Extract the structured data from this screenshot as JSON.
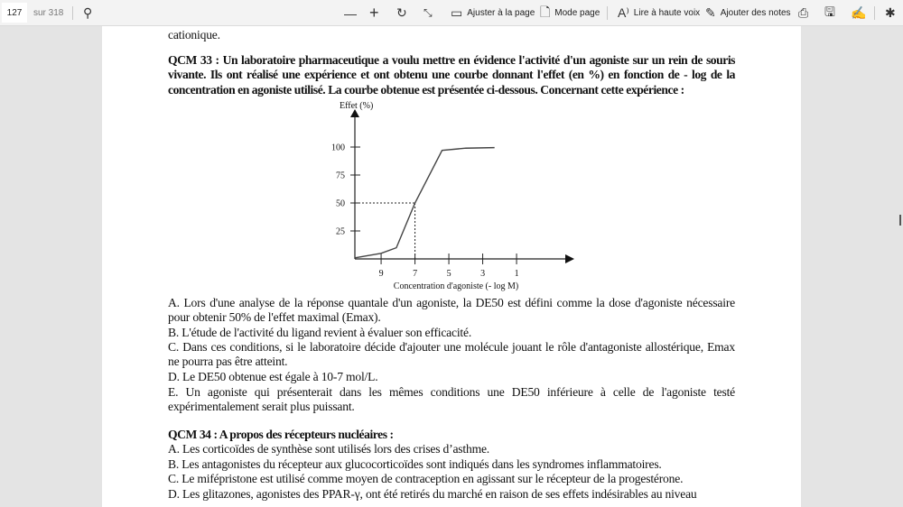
{
  "toolbar": {
    "page_current": "127",
    "page_total": "sur 318",
    "fit_page": "Ajuster à la page",
    "page_mode": "Mode page",
    "read_aloud": "Lire à haute voix",
    "add_notes": "Ajouter des notes"
  },
  "document": {
    "prev_tail": "cationique.",
    "qcm33": {
      "title": "QCM 33 : Un laboratoire pharmaceutique a voulu mettre en évidence l'activité d'un agoniste sur un rein de souris vivante. Ils ont réalisé une expérience et ont obtenu une courbe donnant l'effet (en %) en fonction de - log de la concentration en agoniste utilisé. La courbe obtenue est présentée ci-dessous. Concernant cette expérience :",
      "options": [
        "A. Lors d'une analyse de la réponse quantale d'un agoniste, la DE50 est défini comme la dose d'agoniste nécessaire pour obtenir 50% de l'effet maximal (Emax).",
        "B. L'étude de l'activité du ligand revient à évaluer son efficacité.",
        "C. Dans ces conditions, si le laboratoire décide d'ajouter une molécule jouant le rôle d'antagoniste allostérique, Emax ne pourra pas être atteint.",
        "D. Le DE50 obtenue est égale à 10-7 mol/L.",
        "E. Un agoniste qui présenterait dans les mêmes conditions une DE50 inférieure à celle de l'agoniste testé expérimentalement serait plus puissant."
      ]
    },
    "qcm34": {
      "title": "QCM 34 : A propos des récepteurs nucléaires :",
      "options": [
        "A. Les corticoïdes de synthèse sont utilisés lors des crises d’asthme.",
        "B. Les antagonistes du récepteur aux glucocorticoïdes sont indiqués dans les syndromes inflammatoires.",
        "C. Le mifépristone est utilisé comme moyen de contraception en agissant sur le récepteur de la progestérone.",
        "D. Les glitazones, agonistes des PPAR-γ, ont été retirés du marché en raison de ses effets indésirables au niveau"
      ]
    }
  },
  "chart_data": {
    "type": "line",
    "ylabel": "Effet (%)",
    "xlabel": "Concentration d'agoniste (- log M)",
    "x_ticks": [
      "9",
      "7",
      "5",
      "3",
      "1"
    ],
    "y_ticks": [
      "25",
      "50",
      "75",
      "100"
    ],
    "x_reversed": true,
    "series": [
      {
        "x": [
          10.55,
          9,
          8.1,
          7,
          5.4,
          4,
          2.3
        ],
        "y": [
          1,
          5,
          10,
          50,
          97,
          99,
          99.5
        ]
      }
    ],
    "reference": {
      "x": 7,
      "y": 50,
      "style": "dashed"
    }
  }
}
